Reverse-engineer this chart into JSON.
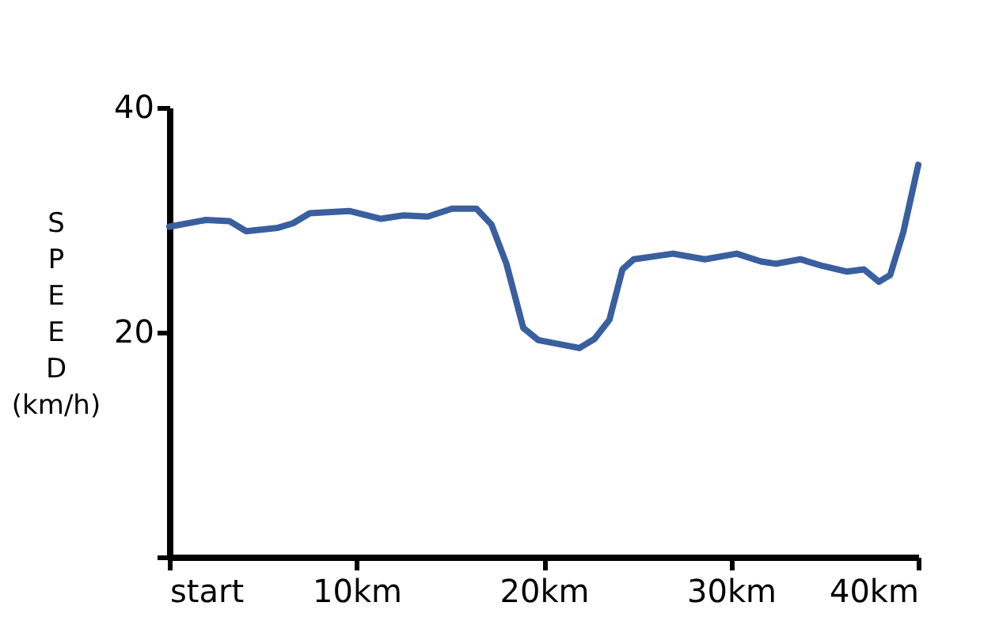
{
  "chart_data": {
    "type": "line",
    "ylabel": "SPEED (km/h)",
    "x": [
      0,
      1.95,
      3.2,
      4.1,
      5.8,
      6.6,
      7.5,
      9.6,
      11.3,
      12.5,
      13.8,
      15.1,
      16.4,
      17.2,
      18.0,
      18.9,
      19.7,
      21.9,
      22.7,
      23.5,
      24.2,
      24.8,
      26.9,
      28.6,
      30.3,
      31.6,
      32.4,
      33.7,
      34.9,
      36.2,
      37.1,
      37.9,
      38.5,
      39.2,
      40
    ],
    "series": [
      {
        "color": "#3a5f9f",
        "values": [
          29.4,
          30.0,
          29.9,
          29.0,
          29.3,
          29.7,
          30.6,
          30.8,
          30.1,
          30.4,
          30.3,
          31.0,
          31.0,
          29.6,
          26.1,
          20.4,
          19.3,
          18.6,
          19.4,
          21.1,
          25.6,
          26.5,
          27.0,
          26.5,
          27.0,
          26.3,
          26.1,
          26.5,
          25.9,
          25.4,
          25.6,
          24.5,
          25.1,
          28.9,
          34.9
        ]
      }
    ],
    "xlim": [
      0,
      40
    ],
    "ylim": [
      0,
      40
    ],
    "xticks": [
      {
        "value": 0,
        "label": "start"
      },
      {
        "value": 10,
        "label": "10km"
      },
      {
        "value": 20,
        "label": "20km"
      },
      {
        "value": 30,
        "label": "30km"
      },
      {
        "value": 40,
        "label": "40km"
      }
    ],
    "yticks": [
      {
        "value": 0,
        "label": null
      },
      20,
      40
    ],
    "grid": false,
    "marker": "none",
    "line_style": "solid"
  }
}
